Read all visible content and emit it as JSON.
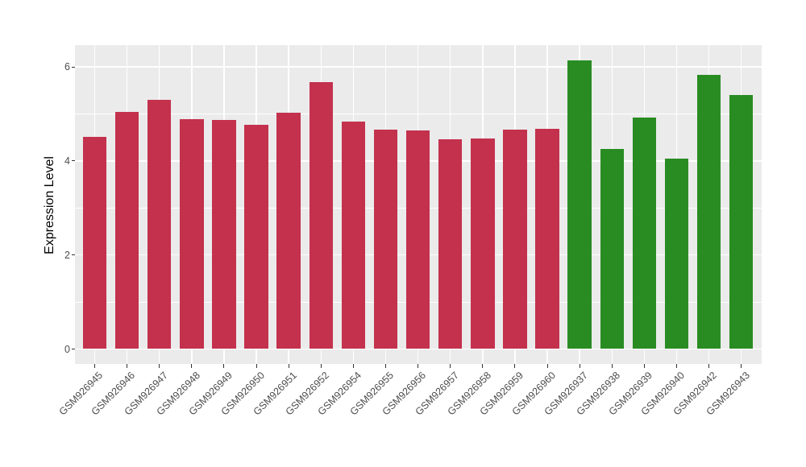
{
  "chart_data": {
    "type": "bar",
    "title": "",
    "xlabel": "",
    "ylabel": "Expression Level",
    "ylim": [
      0,
      6.45
    ],
    "yticks": [
      0,
      2,
      4,
      6
    ],
    "yticks_minor": [
      1,
      3,
      5
    ],
    "grid": "white major and minor gridlines on grey panel",
    "legend_position": "none",
    "categories": [
      "GSM926945",
      "GSM926946",
      "GSM926947",
      "GSM926948",
      "GSM926949",
      "GSM926950",
      "GSM926951",
      "GSM926952",
      "GSM926954",
      "GSM926955",
      "GSM926956",
      "GSM926957",
      "GSM926958",
      "GSM926959",
      "GSM926960",
      "GSM926937",
      "GSM926938",
      "GSM926939",
      "GSM926940",
      "GSM926942",
      "GSM926943"
    ],
    "values": [
      4.51,
      5.04,
      5.3,
      4.89,
      4.87,
      4.77,
      5.03,
      5.68,
      4.84,
      4.67,
      4.65,
      4.46,
      4.47,
      4.67,
      4.69,
      6.14,
      4.26,
      4.93,
      4.05,
      5.83,
      5.4
    ],
    "colors": [
      "#C3314D",
      "#C3314D",
      "#C3314D",
      "#C3314D",
      "#C3314D",
      "#C3314D",
      "#C3314D",
      "#C3314D",
      "#C3314D",
      "#C3314D",
      "#C3314D",
      "#C3314D",
      "#C3314D",
      "#C3314D",
      "#C3314D",
      "#298C22",
      "#298C22",
      "#298C22",
      "#298C22",
      "#298C22",
      "#298C22"
    ],
    "palette": {
      "red_group": "#C3314D",
      "green_group": "#298C22",
      "panel_background": "#EBEBEB",
      "grid_color": "#FFFFFF",
      "axis_text_color": "#4D4D4D"
    }
  }
}
